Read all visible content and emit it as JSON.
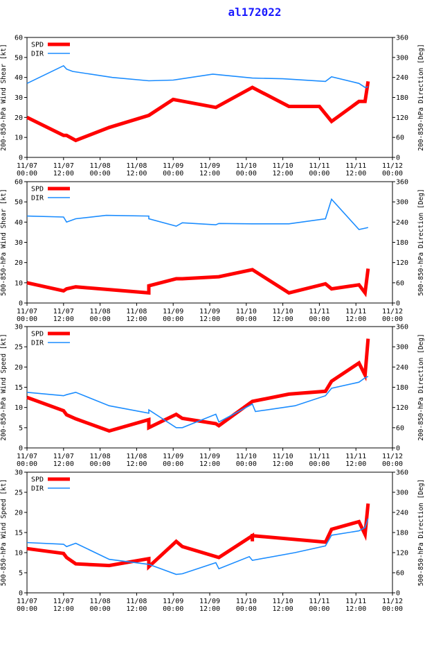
{
  "title": "al172022",
  "colors": {
    "spd": "#ff0000",
    "dir": "#1a8cff",
    "axis": "#000000",
    "title": "#1a1aff"
  },
  "x_ticks": [
    [
      "11/07",
      "00:00"
    ],
    [
      "11/07",
      "12:00"
    ],
    [
      "11/08",
      "00:00"
    ],
    [
      "11/08",
      "12:00"
    ],
    [
      "11/09",
      "00:00"
    ],
    [
      "11/09",
      "12:00"
    ],
    [
      "11/10",
      "00:00"
    ],
    [
      "11/10",
      "12:00"
    ],
    [
      "11/11",
      "00:00"
    ],
    [
      "11/11",
      "12:00"
    ],
    [
      "11/12",
      "00:00"
    ]
  ],
  "chart_data": [
    {
      "type": "line",
      "title": "",
      "ylabel_left": "200-850-hPa Wind Shear [kt]",
      "ylabel_right": "200-850-hPa Direction [Deg]",
      "ylim_left": [
        0,
        60
      ],
      "ylim_right": [
        0,
        360
      ],
      "yticks_left": [
        "0",
        "10",
        "20",
        "30",
        "40",
        "50",
        "60"
      ],
      "yticks_right": [
        "0",
        "60",
        "120",
        "180",
        "240",
        "300",
        "360"
      ],
      "xlim_hours": [
        0,
        120
      ],
      "legend": [
        "SPD",
        "DIR"
      ],
      "series": [
        {
          "name": "SPD",
          "axis": "left",
          "x": [
            0,
            12,
            13,
            16,
            27,
            40,
            48,
            62,
            74,
            86,
            96,
            100,
            109,
            111,
            112
          ],
          "y": [
            20,
            11,
            11,
            8.5,
            15,
            21,
            29,
            25,
            35,
            25.5,
            25.5,
            18,
            28,
            28,
            38
          ]
        },
        {
          "name": "DIR",
          "axis": "right",
          "x": [
            0,
            12,
            13,
            15,
            28,
            40,
            48,
            61,
            63,
            74,
            84,
            98,
            100,
            109,
            111,
            112
          ],
          "y": [
            222,
            275,
            265,
            258,
            240,
            230,
            232,
            250,
            248,
            238,
            236,
            228,
            242,
            222,
            210,
            212
          ]
        }
      ]
    },
    {
      "type": "line",
      "title": "",
      "ylabel_left": "500-850-hPa Wind Shear [kt]",
      "ylabel_right": "500-850-hPa Direction [Deg]",
      "ylim_left": [
        0,
        60
      ],
      "ylim_right": [
        0,
        360
      ],
      "yticks_left": [
        "0",
        "10",
        "20",
        "30",
        "40",
        "50",
        "60"
      ],
      "yticks_right": [
        "0",
        "60",
        "120",
        "180",
        "240",
        "300",
        "360"
      ],
      "xlim_hours": [
        0,
        120
      ],
      "legend": [
        "SPD",
        "DIR"
      ],
      "series": [
        {
          "name": "SPD",
          "axis": "left",
          "x": [
            0,
            12,
            13,
            16,
            40,
            40,
            49,
            51,
            63,
            74,
            86,
            98,
            100,
            109,
            111,
            112
          ],
          "y": [
            10,
            6,
            7,
            8,
            5,
            8.5,
            12,
            12,
            13,
            16.5,
            5,
            9.5,
            7,
            9,
            5,
            17
          ]
        },
        {
          "name": "DIR",
          "axis": "right",
          "x": [
            0,
            12,
            13,
            16,
            26,
            40,
            40,
            49,
            51,
            62,
            63,
            74,
            86,
            98,
            100,
            109,
            111,
            112
          ],
          "y": [
            258,
            255,
            240,
            250,
            260,
            258,
            250,
            228,
            238,
            232,
            236,
            235,
            235,
            250,
            308,
            218,
            222,
            224
          ]
        }
      ]
    },
    {
      "type": "line",
      "title": "",
      "ylabel_left": "200-850-hPa Wind Speed [kt]",
      "ylabel_right": "200-850-hPa Direction [Deg]",
      "ylim_left": [
        0,
        30
      ],
      "ylim_right": [
        0,
        360
      ],
      "yticks_left": [
        "0",
        "5",
        "10",
        "15",
        "20",
        "25",
        "30"
      ],
      "yticks_right": [
        "0",
        "60",
        "120",
        "180",
        "240",
        "300",
        "360"
      ],
      "xlim_hours": [
        0,
        120
      ],
      "legend": [
        "SPD",
        "DIR"
      ],
      "series": [
        {
          "name": "SPD",
          "axis": "left",
          "x": [
            0,
            12,
            13,
            16,
            27,
            40,
            40,
            49,
            51,
            62,
            63,
            74,
            86,
            98,
            100,
            109,
            111,
            112
          ],
          "y": [
            12.5,
            9.2,
            8.2,
            7.2,
            4.2,
            7,
            5,
            8.3,
            7.3,
            6,
            5.5,
            11.5,
            13.3,
            14,
            16.5,
            21,
            18,
            27
          ]
        },
        {
          "name": "DIR",
          "axis": "right",
          "x": [
            0,
            12,
            13,
            16,
            27,
            40,
            40,
            49,
            51,
            62,
            63,
            74,
            75,
            88,
            98,
            100,
            109,
            111,
            112
          ],
          "y": [
            165,
            155,
            158,
            165,
            125,
            103,
            113,
            60,
            60,
            100,
            77,
            130,
            108,
            125,
            155,
            177,
            195,
            208,
            212
          ]
        }
      ]
    },
    {
      "type": "line",
      "title": "",
      "ylabel_left": "500-850-hPa Wind Speed [kt]",
      "ylabel_right": "500-850-hPa Direction [Deg]",
      "ylim_left": [
        0,
        30
      ],
      "ylim_right": [
        0,
        360
      ],
      "yticks_left": [
        "0",
        "5",
        "10",
        "15",
        "20",
        "25",
        "30"
      ],
      "yticks_right": [
        "0",
        "60",
        "120",
        "180",
        "240",
        "300",
        "360"
      ],
      "xlim_hours": [
        0,
        120
      ],
      "legend": [
        "SPD",
        "DIR"
      ],
      "series": [
        {
          "name": "SPD",
          "axis": "left",
          "x": [
            0,
            12,
            13,
            16,
            27,
            40,
            40,
            49,
            51,
            63,
            74,
            74,
            74,
            98,
            100,
            109,
            111,
            112
          ],
          "y": [
            11,
            9.8,
            8.8,
            7.2,
            6.8,
            8.5,
            6.5,
            12.8,
            11.5,
            8.8,
            14.2,
            12.8,
            14.2,
            12.6,
            15.8,
            17.7,
            14.5,
            22.2
          ]
        },
        {
          "name": "DIR",
          "axis": "right",
          "x": [
            0,
            12,
            13,
            16,
            27,
            40,
            49,
            51,
            62,
            63,
            73,
            74,
            88,
            98,
            100,
            109,
            111,
            112
          ],
          "y": [
            150,
            145,
            138,
            148,
            100,
            85,
            55,
            57,
            90,
            72,
            108,
            97,
            120,
            140,
            172,
            185,
            195,
            222
          ]
        }
      ]
    }
  ]
}
